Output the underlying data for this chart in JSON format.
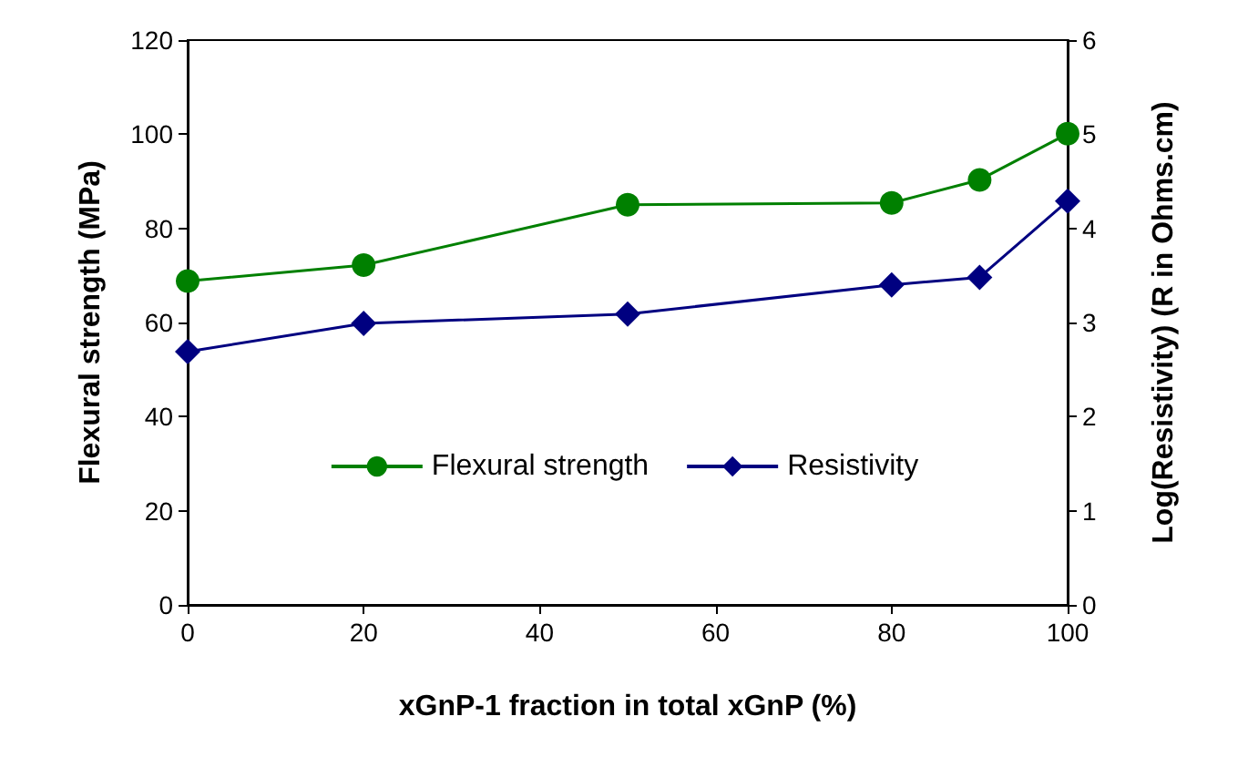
{
  "chart_data": {
    "type": "line",
    "xlabel": "xGnP-1 fraction in total xGnP (%)",
    "ylabel": "Flexural strength (MPa)",
    "y2label": "Log(Resistivity) (R in Ohms.cm)",
    "x": [
      0,
      20,
      50,
      80,
      90,
      100
    ],
    "series": [
      {
        "name": "Flexural strength",
        "color": "#008000",
        "marker": "circle",
        "values": [
          68.8,
          72.2,
          85.0,
          85.4,
          90.3,
          100.1
        ]
      },
      {
        "name": "Resistivity",
        "color": "#000080",
        "marker": "diamond",
        "axis": "y2",
        "values": [
          2.69,
          2.99,
          3.09,
          3.4,
          3.48,
          4.29
        ]
      }
    ],
    "xlim": [
      0,
      100
    ],
    "xticks": [
      0,
      20,
      40,
      60,
      80,
      100
    ],
    "ylim": [
      0,
      120
    ],
    "yticks": [
      0,
      20,
      40,
      60,
      80,
      100,
      120
    ],
    "y2lim": [
      0,
      6
    ],
    "y2ticks": [
      0,
      1,
      2,
      3,
      4,
      5,
      6
    ],
    "grid": false,
    "legend": "bottom",
    "line_style": "solid"
  }
}
